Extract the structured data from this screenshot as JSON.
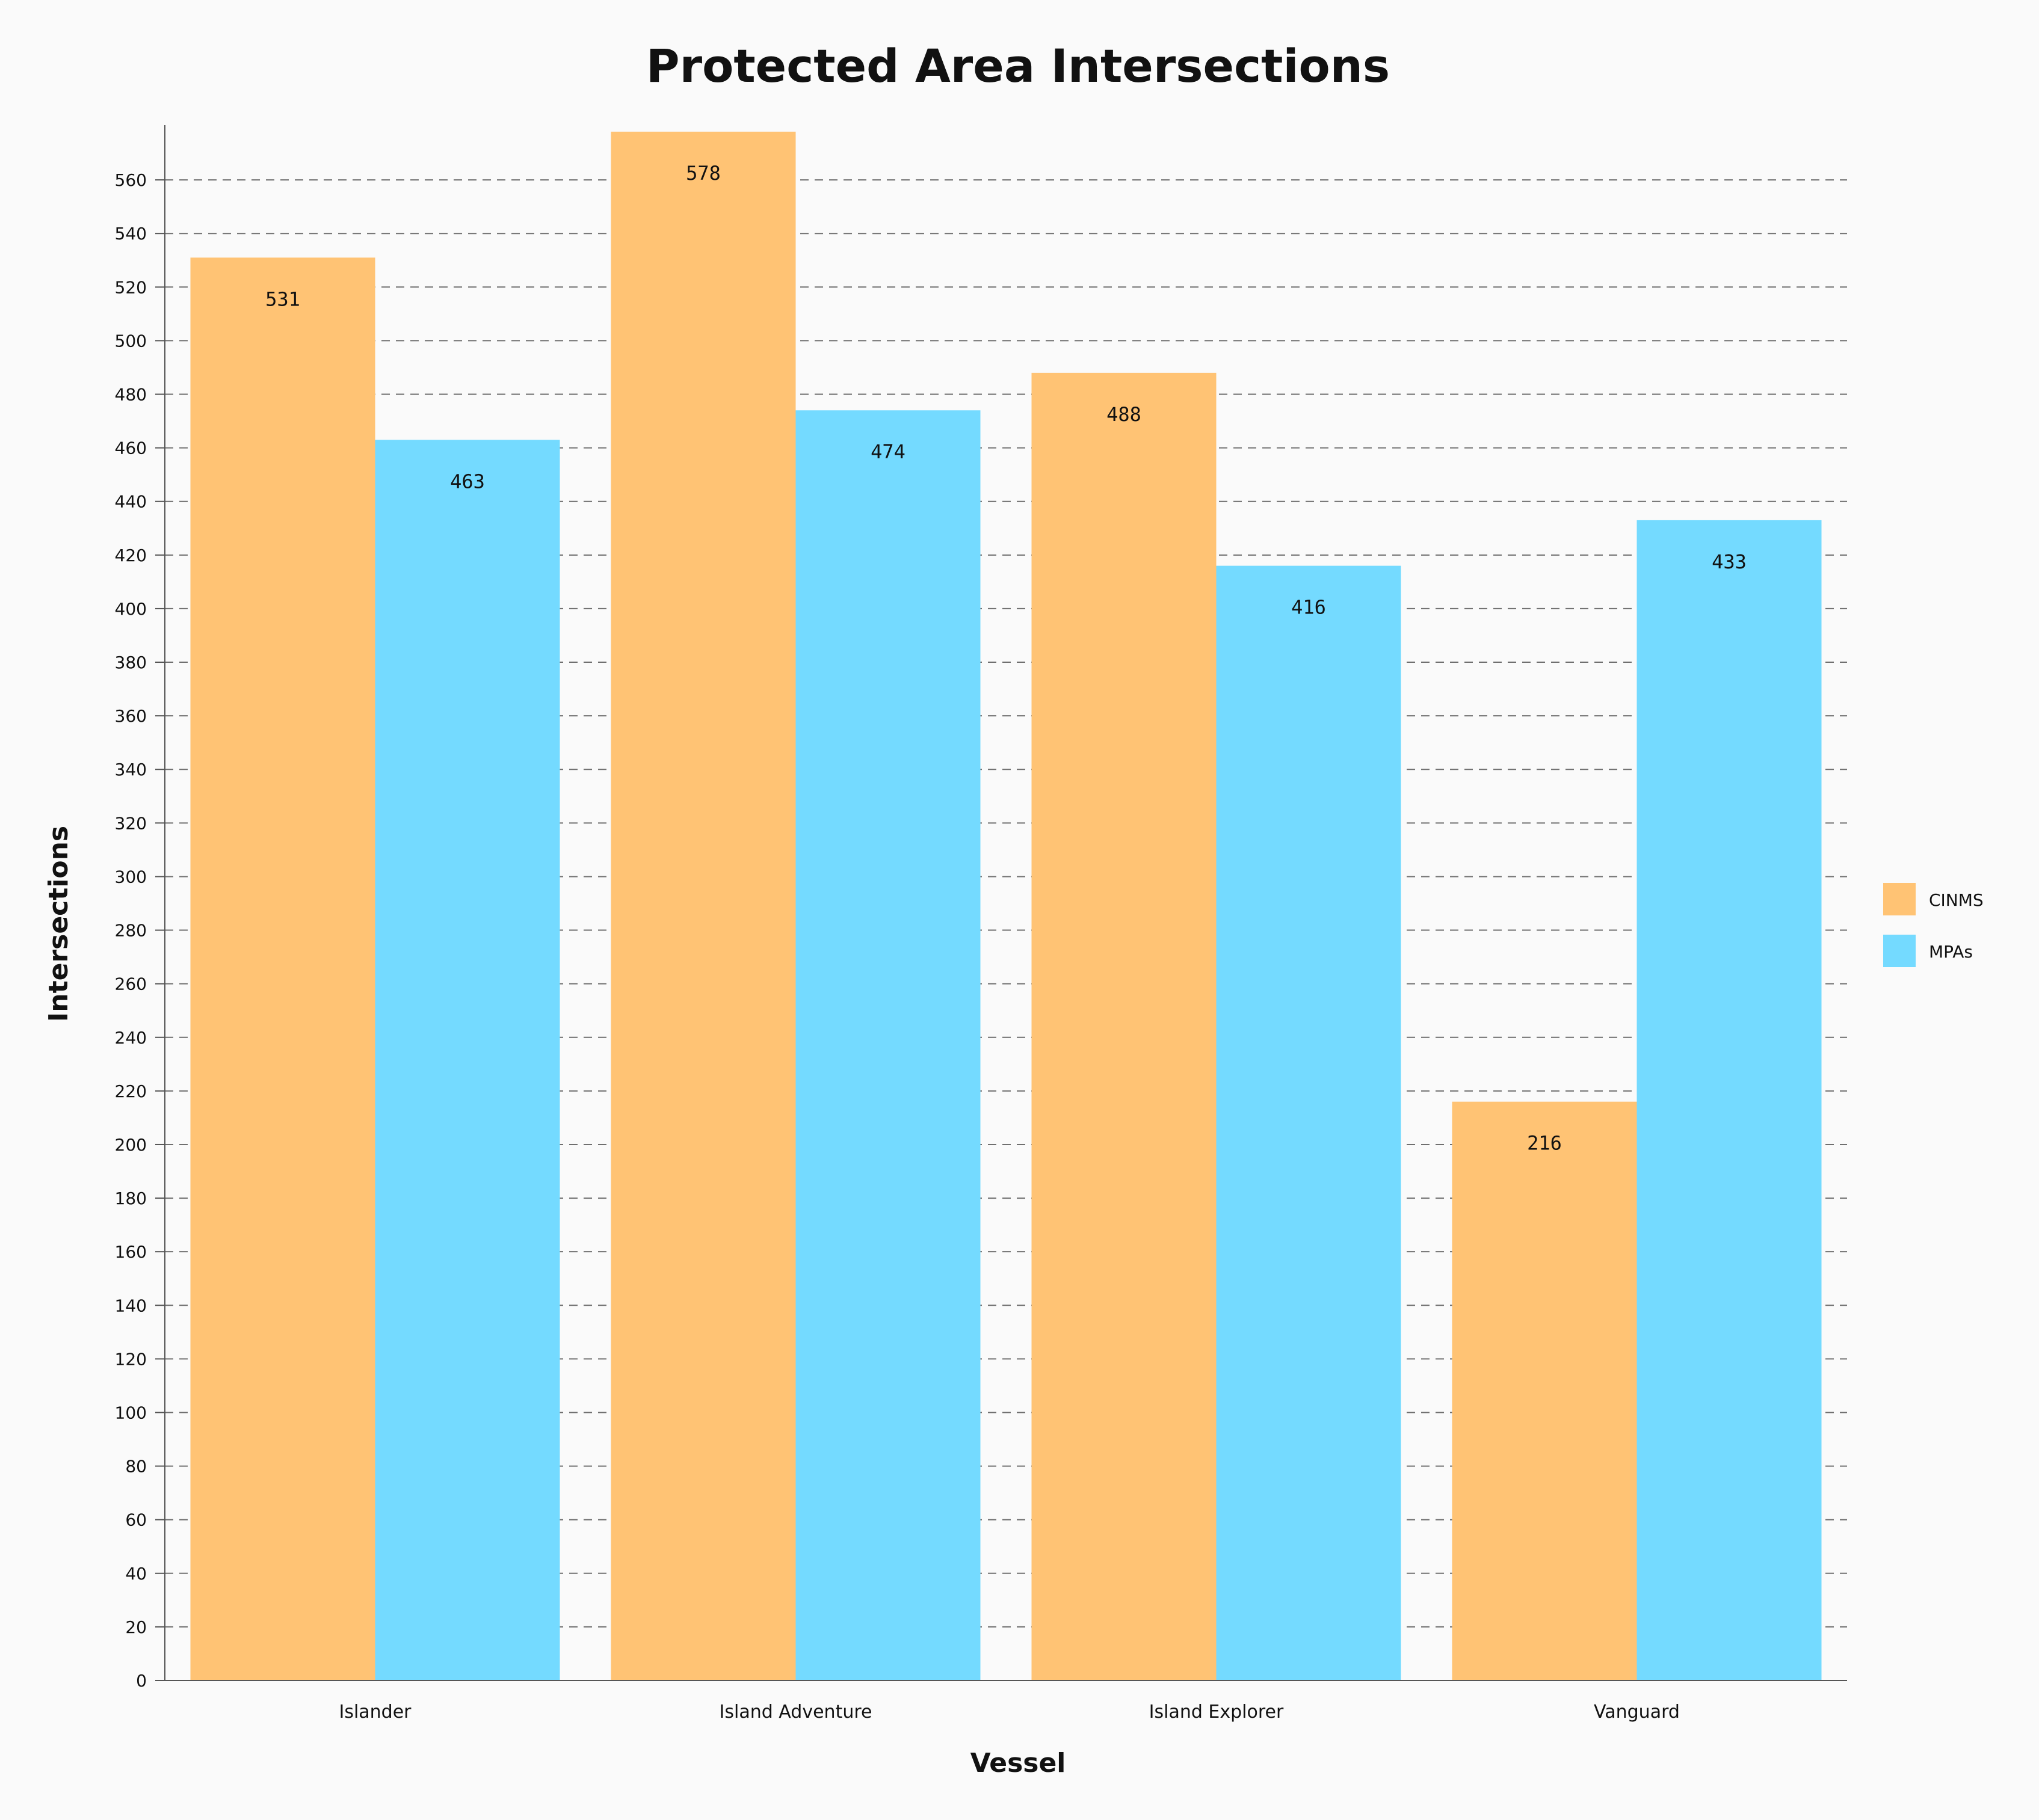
{
  "chart_data": {
    "type": "bar",
    "title": "Protected Area Intersections",
    "xlabel": "Vessel",
    "ylabel": "Intersections",
    "categories": [
      "Islander",
      "Island Adventure",
      "Island Explorer",
      "Vanguard"
    ],
    "series": [
      {
        "name": "CINMS",
        "values": [
          531,
          578,
          488,
          216
        ],
        "color": "#ffc374"
      },
      {
        "name": "MPAs",
        "values": [
          463,
          474,
          416,
          433
        ],
        "color": "#74daff"
      }
    ],
    "ylim": [
      0,
      580
    ],
    "yticks": [
      0,
      20,
      40,
      60,
      80,
      100,
      120,
      140,
      160,
      180,
      200,
      220,
      240,
      260,
      280,
      300,
      320,
      340,
      360,
      380,
      400,
      420,
      440,
      460,
      480,
      500,
      520,
      540,
      560
    ],
    "grid": true,
    "legend_position": "right"
  }
}
